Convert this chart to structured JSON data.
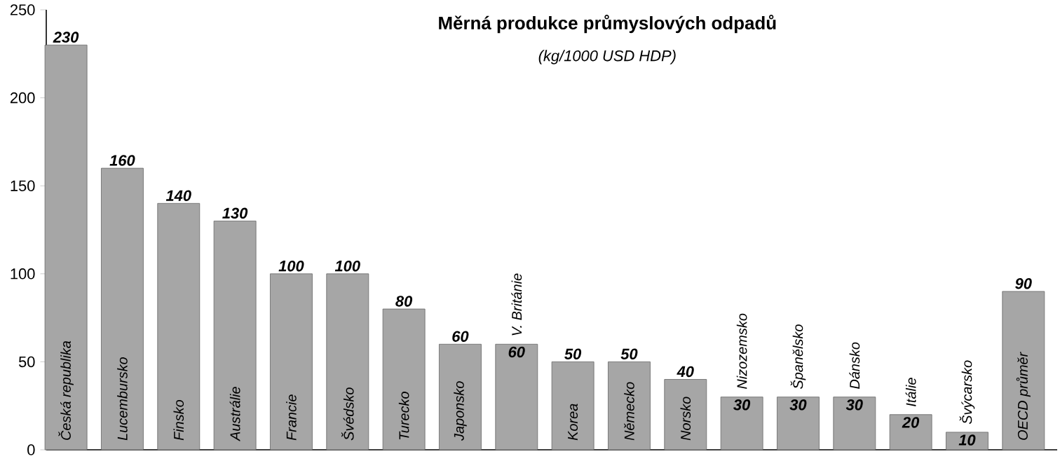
{
  "chart_data": {
    "type": "bar",
    "title": "Měrná produkce průmyslových odpadů",
    "subtitle": "(kg/1000 USD HDP)",
    "categories": [
      "Česká republika",
      "Lucembursko",
      "Finsko",
      "Austrálie",
      "Francie",
      "Švédsko",
      "Turecko",
      "Japonsko",
      "V. Británie",
      "Korea",
      "Německo",
      "Norsko",
      "Nizozemsko",
      "Španělsko",
      "Dánsko",
      "Itálie",
      "Švýcarsko",
      "OECD průměr"
    ],
    "values": [
      230,
      160,
      140,
      130,
      100,
      100,
      80,
      60,
      60,
      50,
      50,
      40,
      30,
      30,
      30,
      20,
      10,
      90
    ],
    "color": "#a6a6a6",
    "ylim": [
      0,
      250
    ],
    "yticks": [
      0,
      50,
      100,
      150,
      200,
      250
    ],
    "data_labels": true
  }
}
